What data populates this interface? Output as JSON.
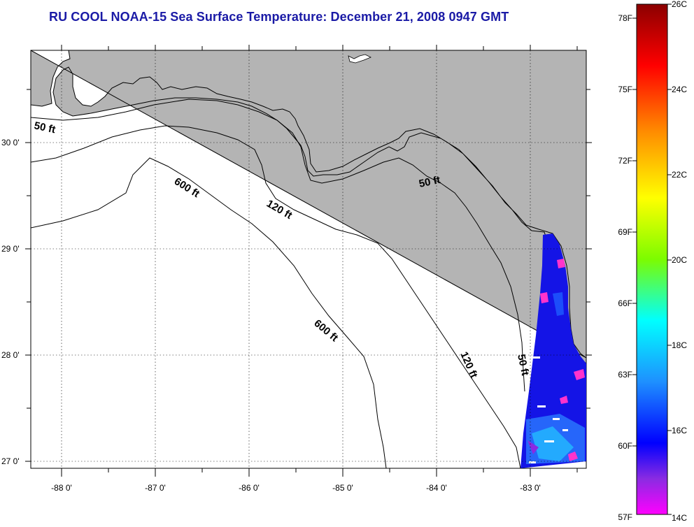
{
  "title": "RU COOL  NOAA-15  Sea Surface Temperature:  December 21, 2008 0947 GMT",
  "map": {
    "lon_ticks": [
      "-88 0'",
      "-87 0'",
      "-86 0'",
      "-85 0'",
      "-84 0'",
      "-83 0'"
    ],
    "lat_ticks": [
      "30 0'",
      "29 0'",
      "28 0'",
      "27 0'"
    ],
    "contour_labels": [
      "50 ft",
      "600 ft",
      "120 ft",
      "50 ft",
      "600 ft",
      "120 ft",
      "50 ft"
    ],
    "land_color": "#b4b4b4",
    "water_color": "#ffffff"
  },
  "colorbar": {
    "fahrenheit": [
      "78F",
      "75F",
      "72F",
      "69F",
      "66F",
      "63F",
      "60F",
      "57F"
    ],
    "celsius": [
      "26C",
      "24C",
      "22C",
      "20C",
      "18C",
      "16C",
      "14C"
    ],
    "colors_top_to_bottom": [
      "#8b0000",
      "#ff0000",
      "#ff8c00",
      "#ffff00",
      "#7cfc00",
      "#00ffff",
      "#1e90ff",
      "#0000ff",
      "#8a2be2",
      "#ff00ff"
    ]
  }
}
